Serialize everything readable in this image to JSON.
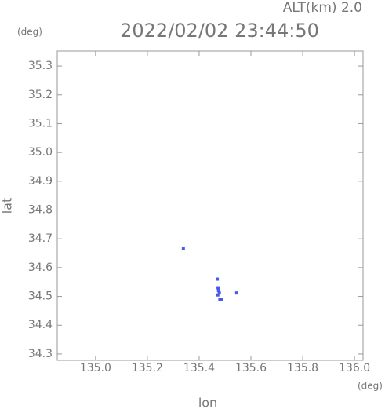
{
  "chart_data": {
    "type": "scatter",
    "title": "2022/02/02 23:44:50",
    "annotation": "ALT(km) 2.0",
    "x_label": "lon",
    "y_label": "lat",
    "x_unit": "(deg)",
    "y_unit": "(deg)",
    "xlim": [
      134.852,
      136.033
    ],
    "ylim": [
      34.278,
      35.352
    ],
    "xticks": [
      {
        "value": 135.0,
        "label": "135.0"
      },
      135.2,
      135.4,
      135.6,
      135.8,
      {
        "value": 136.0,
        "label": "136.0"
      }
    ],
    "yticks": [
      35.3,
      35.2,
      35.1,
      {
        "value": 35.0,
        "label": "35.0"
      },
      34.9,
      34.8,
      34.7,
      34.6,
      34.5,
      34.4,
      34.3
    ],
    "series": [
      {
        "color": "#4a5ae8",
        "x": [
          135.339,
          135.47,
          135.473,
          135.475,
          135.478,
          135.472,
          135.48,
          135.485,
          135.545
        ],
        "values": [
          34.665,
          34.56,
          34.53,
          34.52,
          34.512,
          34.505,
          34.49,
          34.49,
          34.512
        ]
      }
    ]
  }
}
